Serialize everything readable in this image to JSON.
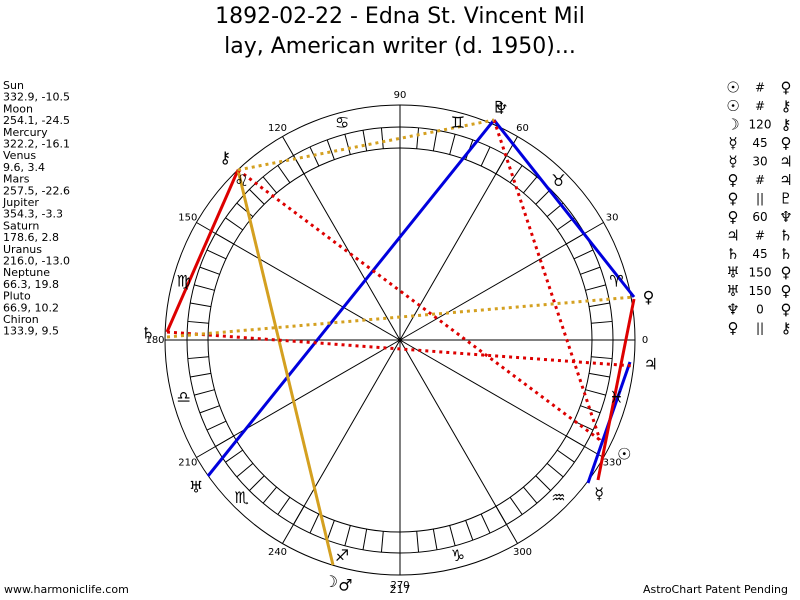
{
  "title": [
    "1892-02-22 - Edna St. Vincent Mil",
    "lay, American writer (d. 1950)..."
  ],
  "planets": [
    {
      "name": "Sun",
      "glyph": "☉",
      "position": "332.9, -10.5"
    },
    {
      "name": "Moon",
      "glyph": "☽",
      "position": "254.1, -24.5"
    },
    {
      "name": "Mercury",
      "glyph": "☿",
      "position": "322.2, -16.1"
    },
    {
      "name": "Venus",
      "glyph": "♀",
      "position": "9.6, 3.4"
    },
    {
      "name": "Mars",
      "glyph": "♂",
      "position": "257.5, -22.6"
    },
    {
      "name": "Jupiter",
      "glyph": "♃",
      "position": "354.3, -3.3"
    },
    {
      "name": "Saturn",
      "glyph": "♄",
      "position": "178.6, 2.8"
    },
    {
      "name": "Uranus",
      "glyph": "♅",
      "position": "216.0, -13.0"
    },
    {
      "name": "Neptune",
      "glyph": "♆",
      "position": "66.3, 19.8"
    },
    {
      "name": "Pluto",
      "glyph": "♇",
      "position": "66.9, 10.2"
    },
    {
      "name": "Chiron",
      "glyph": "⚷",
      "position": "133.9, 9.5"
    }
  ],
  "signs": [
    "♈",
    "♉",
    "♊",
    "♋",
    "♌",
    "♍",
    "♎",
    "♏",
    "♐",
    "♑",
    "♒",
    "♓"
  ],
  "degree_labels": [
    0,
    30,
    60,
    90,
    120,
    150,
    180,
    210,
    240,
    270,
    300,
    330
  ],
  "bottom_label": "217",
  "aspects": [
    [
      "☉",
      "#",
      "♀"
    ],
    [
      "☉",
      "#",
      "⚷"
    ],
    [
      "☽",
      "120",
      "⚷"
    ],
    [
      "☿",
      "45",
      "♀"
    ],
    [
      "☿",
      "30",
      "♃"
    ],
    [
      "♀",
      "#",
      "♃"
    ],
    [
      "♀",
      "||",
      "♇"
    ],
    [
      "♀",
      "60",
      "♆"
    ],
    [
      "♃",
      "#",
      "♄"
    ],
    [
      "♄",
      "45",
      "♄"
    ],
    [
      "♅",
      "150",
      "♀"
    ],
    [
      "♅",
      "150",
      "♀"
    ],
    [
      "♆",
      "0",
      "♀"
    ],
    [
      "♀",
      "||",
      "⚷"
    ]
  ],
  "footer_left": "www.harmoniclife.com",
  "footer_right": "AstroChart Patent Pending"
}
